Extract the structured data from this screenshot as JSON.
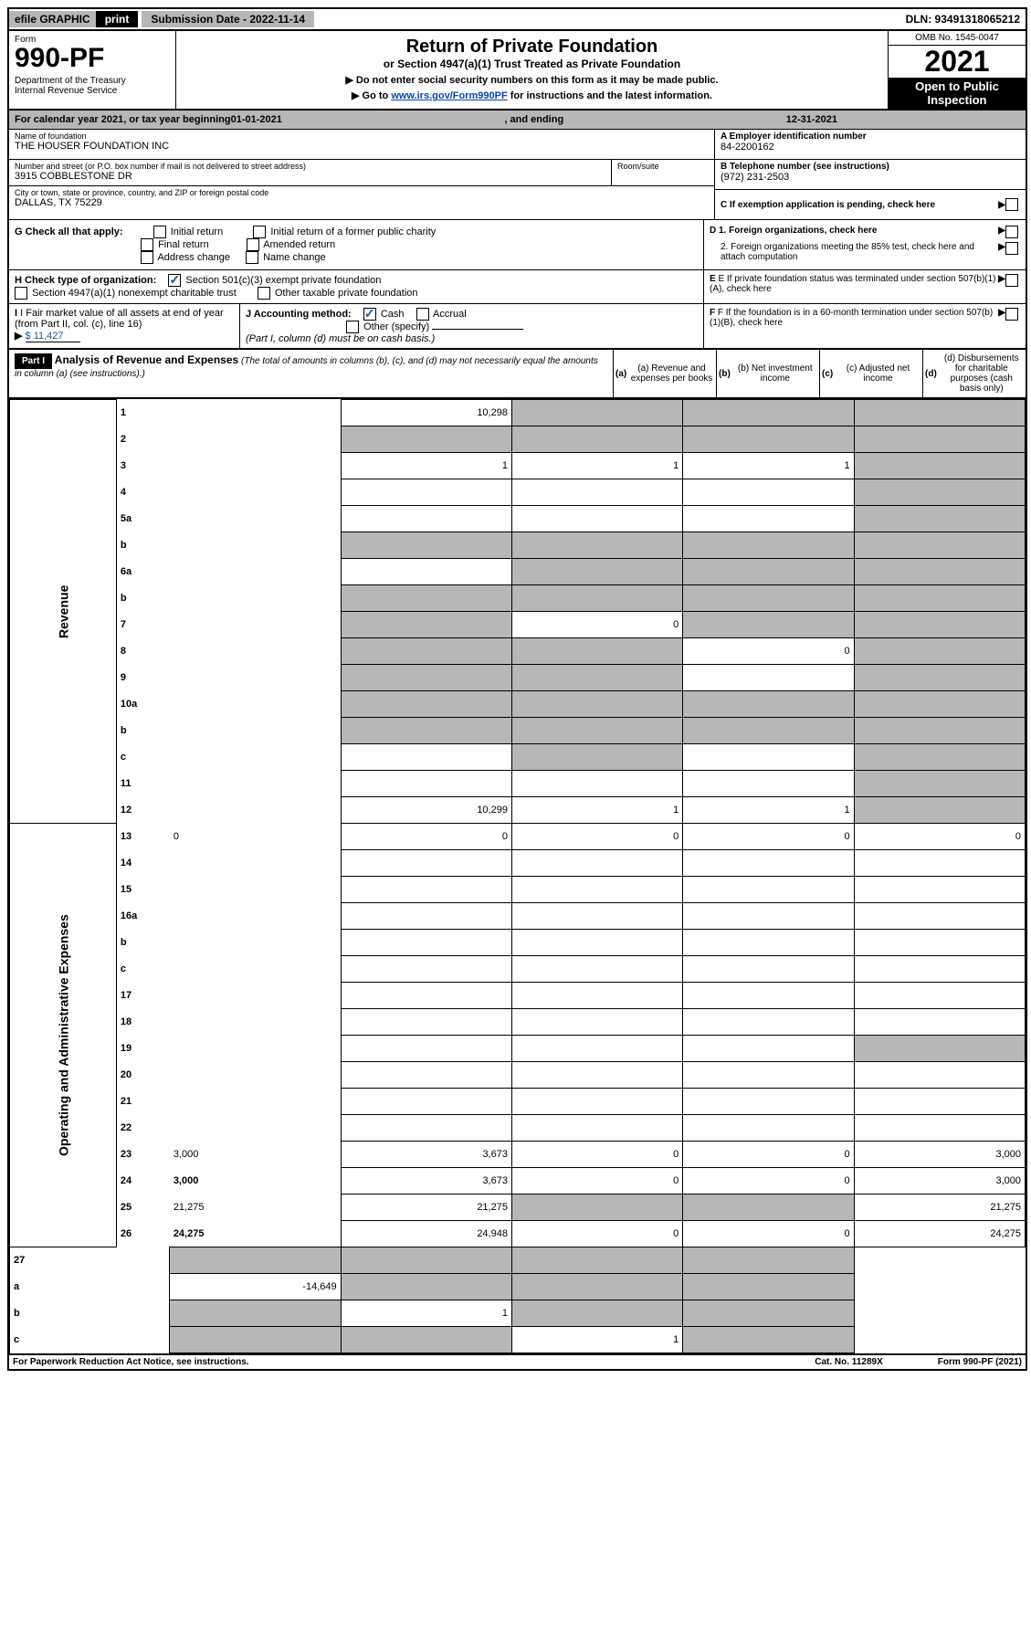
{
  "topbar": {
    "efile": "efile GRAPHIC",
    "print": "print",
    "subdate_label": "Submission Date - 2022-11-14",
    "dln": "DLN: 93491318065212"
  },
  "header": {
    "form_label": "Form",
    "form_num": "990-PF",
    "dept": "Department of the Treasury\nInternal Revenue Service",
    "title": "Return of Private Foundation",
    "subtitle": "or Section 4947(a)(1) Trust Treated as Private Foundation",
    "note1": "▶ Do not enter social security numbers on this form as it may be made public.",
    "note2_pre": "▶ Go to ",
    "note2_link": "www.irs.gov/Form990PF",
    "note2_post": " for instructions and the latest information.",
    "omb": "OMB No. 1545-0047",
    "year": "2021",
    "open": "Open to Public Inspection"
  },
  "calendar": {
    "pre": "For calendar year 2021, or tax year beginning ",
    "begin": "01-01-2021",
    "mid": ", and ending ",
    "end": "12-31-2021"
  },
  "info": {
    "name_label": "Name of foundation",
    "name": "THE HOUSER FOUNDATION INC",
    "addr_label": "Number and street (or P.O. box number if mail is not delivered to street address)",
    "addr": "3915 COBBLESTONE DR",
    "room_label": "Room/suite",
    "room": "",
    "city_label": "City or town, state or province, country, and ZIP or foreign postal code",
    "city": "DALLAS, TX  75229",
    "ein_label": "A Employer identification number",
    "ein": "84-2200162",
    "tel_label": "B Telephone number (see instructions)",
    "tel": "(972) 231-2503",
    "c_label": "C If exemption application is pending, check here"
  },
  "checks": {
    "g_label": "G Check all that apply:",
    "g1": "Initial return",
    "g2": "Final return",
    "g3": "Address change",
    "g4": "Initial return of a former public charity",
    "g5": "Amended return",
    "g6": "Name change",
    "d_label": "D 1. Foreign organizations, check here",
    "d2_label": "2. Foreign organizations meeting the 85% test, check here and attach computation",
    "h_label": "H Check type of organization:",
    "h1": "Section 501(c)(3) exempt private foundation",
    "h2": "Section 4947(a)(1) nonexempt charitable trust",
    "h3": "Other taxable private foundation",
    "e_label": "E If private foundation status was terminated under section 507(b)(1)(A), check here",
    "i_label": "I Fair market value of all assets at end of year (from Part II, col. (c), line 16)",
    "i_value": "$  11,427",
    "j_label": "J Accounting method:",
    "j1": "Cash",
    "j2": "Accrual",
    "j3": "Other (specify)",
    "j_note": "(Part I, column (d) must be on cash basis.)",
    "f_label": "F If the foundation is in a 60-month termination under section 507(b)(1)(B), check here"
  },
  "part1": {
    "label": "Part I",
    "title": "Analysis of Revenue and Expenses",
    "title_note": "(The total of amounts in columns (b), (c), and (d) may not necessarily equal the amounts in column (a) (see instructions).)",
    "col_a": "(a) Revenue and expenses per books",
    "col_b": "(b) Net investment income",
    "col_c": "(c) Adjusted net income",
    "col_d": "(d) Disbursements for charitable purposes (cash basis only)"
  },
  "vlabels": {
    "revenue": "Revenue",
    "expenses": "Operating and Administrative Expenses"
  },
  "rows": [
    {
      "n": "1",
      "d": "",
      "a": "10,298",
      "b": "",
      "c": "",
      "greyB": true,
      "greyC": true,
      "greyD": true
    },
    {
      "n": "2",
      "d": "",
      "a": "",
      "b": "",
      "c": "",
      "greyA": true,
      "greyB": true,
      "greyC": true,
      "greyD": true,
      "bolditalic": true
    },
    {
      "n": "3",
      "d": "",
      "a": "1",
      "b": "1",
      "c": "1",
      "greyD": true
    },
    {
      "n": "4",
      "d": "",
      "a": "",
      "b": "",
      "c": "",
      "greyD": true
    },
    {
      "n": "5a",
      "d": "",
      "a": "",
      "b": "",
      "c": "",
      "greyD": true
    },
    {
      "n": "b",
      "d": "",
      "a": "",
      "b": "",
      "c": "",
      "greyA": true,
      "greyB": true,
      "greyC": true,
      "greyD": true
    },
    {
      "n": "6a",
      "d": "",
      "a": "",
      "b": "",
      "c": "",
      "greyB": true,
      "greyC": true,
      "greyD": true
    },
    {
      "n": "b",
      "d": "",
      "a": "",
      "b": "",
      "c": "",
      "greyA": true,
      "greyB": true,
      "greyC": true,
      "greyD": true
    },
    {
      "n": "7",
      "d": "",
      "a": "",
      "b": "0",
      "c": "",
      "greyA": true,
      "greyC": true,
      "greyD": true
    },
    {
      "n": "8",
      "d": "",
      "a": "",
      "b": "",
      "c": "0",
      "greyA": true,
      "greyB": true,
      "greyD": true
    },
    {
      "n": "9",
      "d": "",
      "a": "",
      "b": "",
      "c": "",
      "greyA": true,
      "greyB": true,
      "greyD": true
    },
    {
      "n": "10a",
      "d": "",
      "a": "",
      "b": "",
      "c": "",
      "greyA": true,
      "greyB": true,
      "greyC": true,
      "greyD": true
    },
    {
      "n": "b",
      "d": "",
      "a": "",
      "b": "",
      "c": "",
      "greyA": true,
      "greyB": true,
      "greyC": true,
      "greyD": true
    },
    {
      "n": "c",
      "d": "",
      "a": "",
      "b": "",
      "c": "",
      "greyB": true,
      "greyD": true
    },
    {
      "n": "11",
      "d": "",
      "a": "",
      "b": "",
      "c": "",
      "greyD": true
    },
    {
      "n": "12",
      "d": "",
      "a": "10,299",
      "b": "1",
      "c": "1",
      "greyD": true,
      "bold": true
    }
  ],
  "rows2": [
    {
      "n": "13",
      "d": "0",
      "a": "0",
      "b": "0",
      "c": "0"
    },
    {
      "n": "14",
      "d": "",
      "a": "",
      "b": "",
      "c": ""
    },
    {
      "n": "15",
      "d": "",
      "a": "",
      "b": "",
      "c": ""
    },
    {
      "n": "16a",
      "d": "",
      "a": "",
      "b": "",
      "c": ""
    },
    {
      "n": "b",
      "d": "",
      "a": "",
      "b": "",
      "c": ""
    },
    {
      "n": "c",
      "d": "",
      "a": "",
      "b": "",
      "c": ""
    },
    {
      "n": "17",
      "d": "",
      "a": "",
      "b": "",
      "c": ""
    },
    {
      "n": "18",
      "d": "",
      "a": "",
      "b": "",
      "c": ""
    },
    {
      "n": "19",
      "d": "",
      "a": "",
      "b": "",
      "c": "",
      "greyD": true
    },
    {
      "n": "20",
      "d": "",
      "a": "",
      "b": "",
      "c": ""
    },
    {
      "n": "21",
      "d": "",
      "a": "",
      "b": "",
      "c": ""
    },
    {
      "n": "22",
      "d": "",
      "a": "",
      "b": "",
      "c": ""
    },
    {
      "n": "23",
      "d": "3,000",
      "a": "3,673",
      "b": "0",
      "c": "0"
    },
    {
      "n": "24",
      "d": "3,000",
      "a": "3,673",
      "b": "0",
      "c": "0",
      "bold": true
    },
    {
      "n": "25",
      "d": "21,275",
      "a": "21,275",
      "b": "",
      "c": "",
      "greyB": true,
      "greyC": true
    },
    {
      "n": "26",
      "d": "24,275",
      "a": "24,948",
      "b": "0",
      "c": "0",
      "bold": true
    }
  ],
  "rows3": [
    {
      "n": "27",
      "d": "",
      "a": "",
      "b": "",
      "c": "",
      "greyA": true,
      "greyB": true,
      "greyC": true,
      "greyD": true
    },
    {
      "n": "a",
      "d": "",
      "a": "-14,649",
      "b": "",
      "c": "",
      "greyB": true,
      "greyC": true,
      "greyD": true,
      "bold": true
    },
    {
      "n": "b",
      "d": "",
      "a": "",
      "b": "1",
      "c": "",
      "greyA": true,
      "greyC": true,
      "greyD": true,
      "bold": true
    },
    {
      "n": "c",
      "d": "",
      "a": "",
      "b": "",
      "c": "1",
      "greyA": true,
      "greyB": true,
      "greyD": true,
      "bold": true
    }
  ],
  "footer": {
    "left": "For Paperwork Reduction Act Notice, see instructions.",
    "mid": "Cat. No. 11289X",
    "right": "Form 990-PF (2021)"
  },
  "colors": {
    "grey": "#b7b7b7",
    "link": "#0645ad",
    "check": "#1a5490"
  }
}
